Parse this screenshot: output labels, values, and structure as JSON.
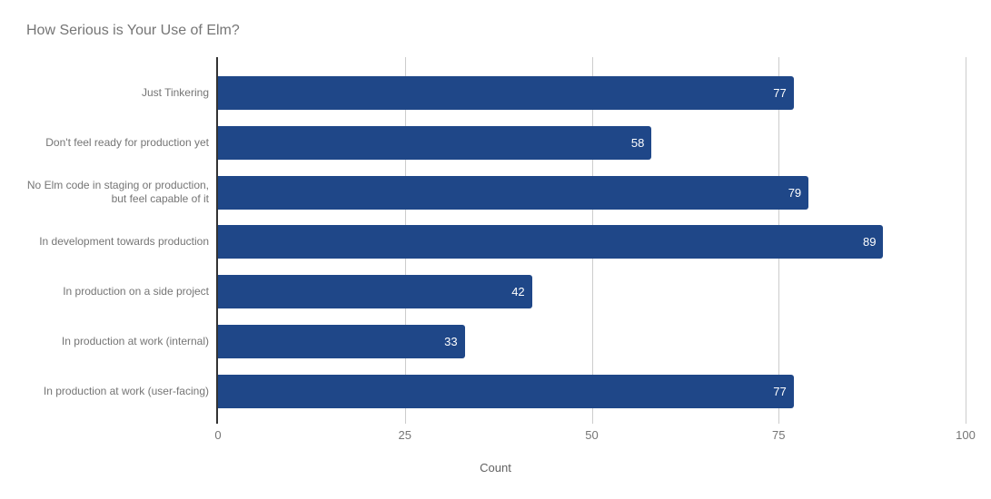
{
  "chart_data": {
    "type": "bar",
    "orientation": "horizontal",
    "title": "How Serious is Your Use of Elm?",
    "xlabel": "Count",
    "ylabel": "",
    "categories": [
      "Just Tinkering",
      "Don't feel ready for production yet",
      "No Elm code in staging or production,\nbut feel capable of it",
      "In development towards production",
      "In production on a side project",
      "In production at work (internal)",
      "In production at work (user-facing)"
    ],
    "values": [
      77,
      58,
      79,
      89,
      42,
      33,
      77
    ],
    "x_ticks": [
      0,
      25,
      50,
      75,
      100
    ],
    "xlim": [
      0,
      100
    ],
    "grid": true,
    "legend": "none",
    "colors": {
      "bar": "#1f4788",
      "value_label": "#ffffff",
      "grid_line": "#cccccc",
      "axis_line": "#333333",
      "title_text": "#757575",
      "label_text": "#757575",
      "axis_title_text": "#616161"
    }
  }
}
